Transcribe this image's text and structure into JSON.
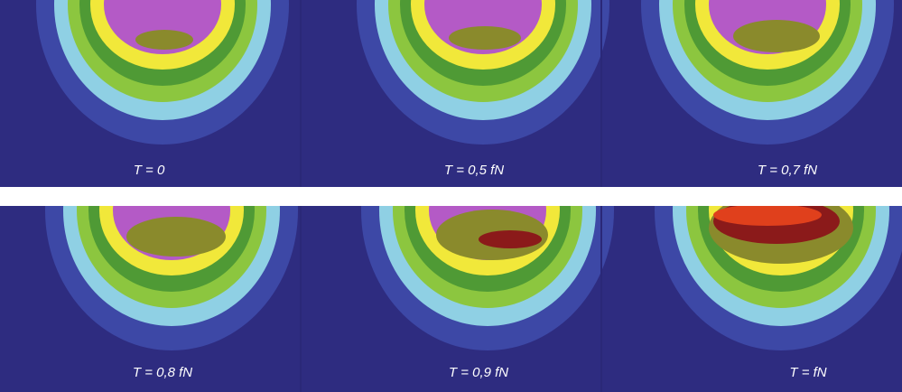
{
  "panels": [
    {
      "label": "T = 0"
    },
    {
      "label": "T = 0,5 fN"
    },
    {
      "label": "T = 0,7 fN"
    },
    {
      "label": "T = 0,8 fN"
    },
    {
      "label": "T = 0,9 fN"
    },
    {
      "label": "T = fN"
    }
  ]
}
